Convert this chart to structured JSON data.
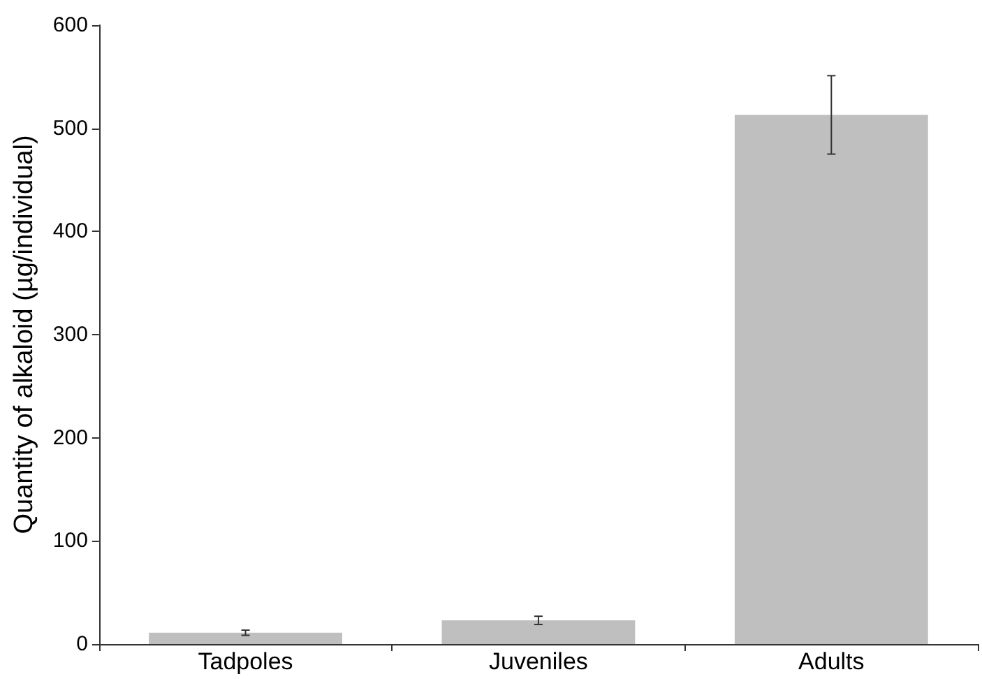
{
  "chart_data": {
    "type": "bar",
    "ylabel": "Quantity of alkaloid (µg/individual)",
    "categories": [
      "Tadpoles",
      "Juveniles",
      "Adults"
    ],
    "values": [
      11,
      23,
      513
    ],
    "errors": [
      2.5,
      4,
      38
    ],
    "color": "#bfbfbf",
    "ylim": [
      0,
      600
    ],
    "yticks": [
      0,
      100,
      200,
      300,
      400,
      500,
      600
    ],
    "grid": false
  }
}
